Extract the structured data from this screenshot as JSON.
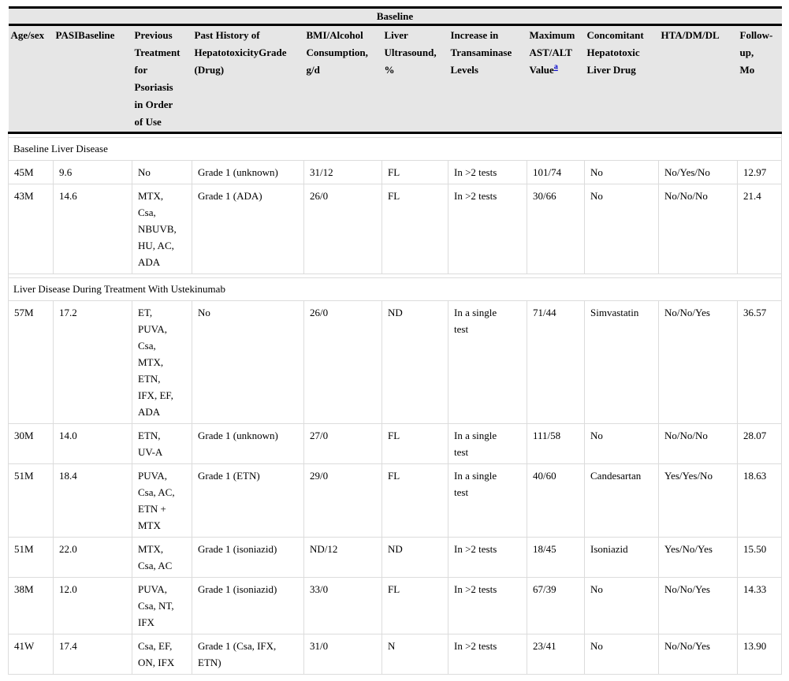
{
  "table": {
    "title_band": "Baseline",
    "footnote_marker": "a",
    "columns": [
      "Age/sex",
      "PASIBaseline",
      "Previous\nTreatment\nfor\nPsoriasis\nin Order\nof Use",
      "Past History of HepatotoxicityGrade (Drug)",
      "BMI/Alcohol Consumption, g/d",
      "Liver Ultrasound, %",
      "Increase in Transaminase Levels",
      "Maximum AST/ALT Value",
      "Concomitant Hepatotoxic Liver Drug",
      "HTA/DM/DL",
      "Follow-\nup,\nMo"
    ],
    "sections": [
      {
        "title": "Baseline Liver Disease",
        "rows": [
          [
            "45M",
            "9.6",
            "No",
            "Grade 1 (unknown)",
            "31/12",
            "FL",
            "In >2 tests",
            "101/74",
            "No",
            "No/Yes/No",
            "12.97"
          ],
          [
            "43M",
            "14.6",
            "MTX,\nCsa,\nNBUVB,\nHU, AC,\nADA",
            "Grade 1 (ADA)",
            "26/0",
            "FL",
            "In >2 tests",
            "30/66",
            "No",
            "No/No/No",
            "21.4"
          ]
        ]
      },
      {
        "title": "Liver Disease During Treatment With Ustekinumab",
        "rows": [
          [
            "57M",
            "17.2",
            "ET,\nPUVA,\nCsa,\nMTX,\nETN,\nIFX, EF,\nADA",
            "No",
            "26/0",
            "ND",
            "In a single\ntest",
            "71/44",
            "Simvastatin",
            "No/No/Yes",
            "36.57"
          ],
          [
            "30M",
            "14.0",
            "ETN,\nUV-A",
            "Grade 1 (unknown)",
            "27/0",
            "FL",
            "In a single\ntest",
            "111/58",
            "No",
            "No/No/No",
            "28.07"
          ],
          [
            "51M",
            "18.4",
            "PUVA,\nCsa, AC,\nETN +\nMTX",
            "Grade 1 (ETN)",
            "29/0",
            "FL",
            "In a single\ntest",
            "40/60",
            "Candesartan",
            "Yes/Yes/No",
            "18.63"
          ],
          [
            "51M",
            "22.0",
            "MTX,\nCsa, AC",
            "Grade 1 (isoniazid)",
            "ND/12",
            "ND",
            "In >2 tests",
            "18/45",
            "Isoniazid",
            "Yes/No/Yes",
            "15.50"
          ],
          [
            "38M",
            "12.0",
            "PUVA,\nCsa, NT,\nIFX",
            "Grade 1 (isoniazid)",
            "33/0",
            "FL",
            "In >2 tests",
            "67/39",
            "No",
            "No/No/Yes",
            "14.33"
          ],
          [
            "41W",
            "17.4",
            "Csa, EF,\nON, IFX",
            "Grade 1 (Csa, IFX,\nETN)",
            "31/0",
            "N",
            "In >2 tests",
            "23/41",
            "No",
            "No/No/Yes",
            "13.90"
          ]
        ]
      }
    ]
  },
  "colors": {
    "header_bg": "#e6e6e6",
    "border_dark": "#000000",
    "border_light": "#dcdcdc",
    "link_blue": "#0000cc",
    "text_color": "#000000"
  }
}
